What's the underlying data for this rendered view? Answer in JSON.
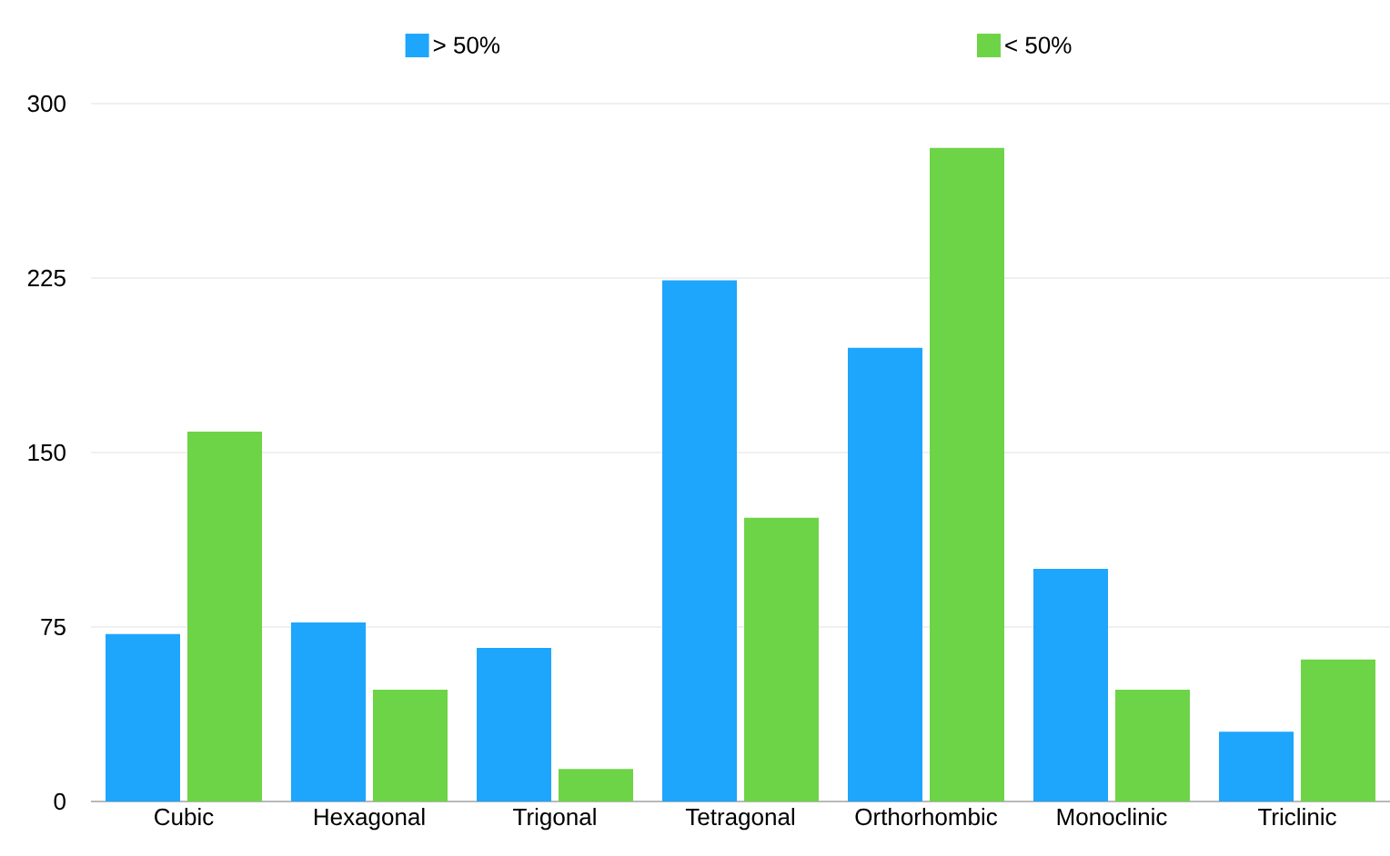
{
  "chart_data": {
    "type": "bar",
    "categories": [
      "Cubic",
      "Hexagonal",
      "Trigonal",
      "Tetragonal",
      "Orthorhombic",
      "Monoclinic",
      "Triclinic"
    ],
    "series": [
      {
        "name": "> 50%",
        "color": "#1ea5fc",
        "values": [
          72,
          77,
          66,
          224,
          195,
          100,
          30
        ]
      },
      {
        "name": "< 50%",
        "color": "#6dd447",
        "values": [
          159,
          48,
          14,
          122,
          281,
          48,
          61
        ]
      }
    ],
    "ylim": [
      0,
      300
    ],
    "yticks": [
      0,
      75,
      150,
      225,
      300
    ],
    "grid": "y",
    "legend": "top"
  }
}
